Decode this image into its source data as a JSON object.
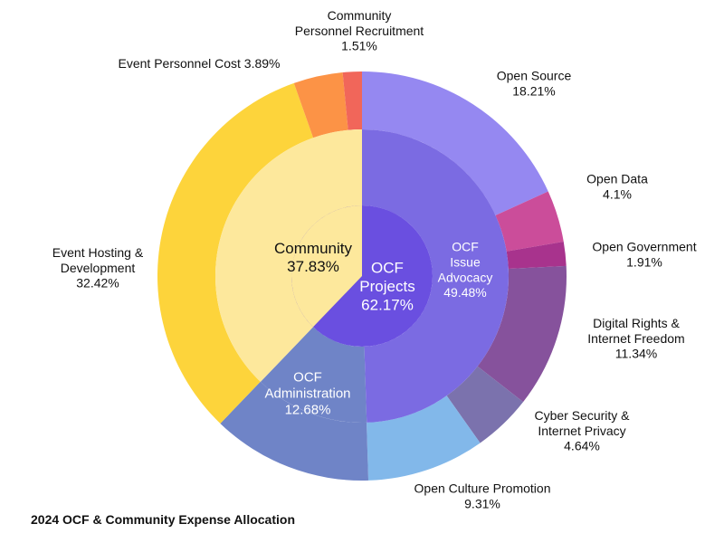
{
  "chart_data": {
    "type": "sunburst",
    "title": "2024 OCF & Community Expense Allocation",
    "center": {
      "label": "OCF\nProjects",
      "value": "62.17%",
      "color": "#6a4fe0"
    },
    "middle_ring": [
      {
        "name": "Community",
        "value": 37.83,
        "label": "Community",
        "pct": "37.83%",
        "color": "#fde89c"
      },
      {
        "name": "OCF Issue Advocacy",
        "value": 49.48,
        "label": "OCF\nIssue\nAdvocacy",
        "pct": "49.48%",
        "color": "#7b6be2"
      },
      {
        "name": "OCF Administration",
        "value": 12.68,
        "label": "OCF\nAdministration",
        "pct": "12.68%",
        "color": "#6f84c7"
      }
    ],
    "outer_ring": [
      {
        "name": "Open Source",
        "value": 18.21,
        "label": "Open Source",
        "pct": "18.21%",
        "color": "#9588f1"
      },
      {
        "name": "Open Data",
        "value": 4.1,
        "label": "Open Data",
        "pct": "4.1%",
        "color": "#cb4d9a"
      },
      {
        "name": "Open Government",
        "value": 1.91,
        "label": "Open Government",
        "pct": "1.91%",
        "color": "#a8338d"
      },
      {
        "name": "Digital Rights & Internet Freedom",
        "value": 11.34,
        "label": "Digital Rights &\nInternet Freedom",
        "pct": "11.34%",
        "color": "#86529c"
      },
      {
        "name": "Cyber Security & Internet Privacy",
        "value": 4.64,
        "label": "Cyber Security &\nInternet Privacy",
        "pct": "4.64%",
        "color": "#7b72ad"
      },
      {
        "name": "Open Culture Promotion",
        "value": 9.31,
        "label": "Open Culture Promotion",
        "pct": "9.31%",
        "color": "#82b8ea"
      },
      {
        "name": "OCF Administration",
        "value": 12.68,
        "label": "",
        "pct": "",
        "color": "#6f84c7"
      },
      {
        "name": "Event Hosting & Development",
        "value": 32.42,
        "label": "Event Hosting &\nDevelopment",
        "pct": "32.42%",
        "color": "#fdd43b"
      },
      {
        "name": "Event Personnel Cost",
        "value": 3.89,
        "label": "Event Personnel Cost",
        "pct": "3.89%",
        "color": "#fc9346"
      },
      {
        "name": "Community Personnel Recruitment",
        "value": 1.51,
        "label": "Community\nPersonnel Recruitment",
        "pct": "1.51%",
        "color": "#f1665a"
      }
    ]
  }
}
